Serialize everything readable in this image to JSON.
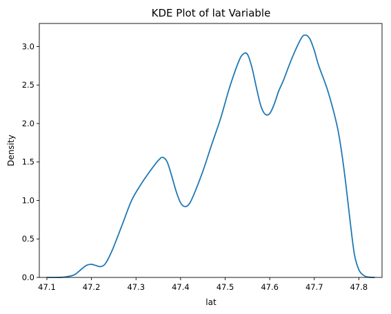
{
  "chart_data": {
    "type": "line",
    "title": "KDE Plot of lat Variable",
    "xlabel": "lat",
    "ylabel": "Density",
    "xlim": [
      47.083,
      47.852
    ],
    "ylim": [
      0,
      3.3
    ],
    "grid": false,
    "legend": "none",
    "line_color": "#1f77b4",
    "x_ticks": [
      47.1,
      47.2,
      47.3,
      47.4,
      47.5,
      47.6,
      47.7,
      47.8
    ],
    "x_tick_labels": [
      "47.1",
      "47.2",
      "47.3",
      "47.4",
      "47.5",
      "47.6",
      "47.7",
      "47.8"
    ],
    "y_ticks": [
      0,
      0.5,
      1.0,
      1.5,
      2.0,
      2.5,
      3.0
    ],
    "y_tick_labels": [
      "0.0",
      "0.5",
      "1.0",
      "1.5",
      "2.0",
      "2.5",
      "3.0"
    ],
    "series": [
      {
        "x": [
          47.1,
          47.12,
          47.14,
          47.16,
          47.17,
          47.18,
          47.19,
          47.2,
          47.21,
          47.22,
          47.23,
          47.24,
          47.25,
          47.27,
          47.29,
          47.31,
          47.33,
          47.35,
          47.36,
          47.37,
          47.38,
          47.39,
          47.4,
          47.41,
          47.42,
          47.43,
          47.45,
          47.47,
          47.49,
          47.51,
          47.53,
          47.54,
          47.55,
          47.56,
          47.57,
          47.58,
          47.59,
          47.6,
          47.61,
          47.62,
          47.63,
          47.65,
          47.67,
          47.68,
          47.69,
          47.7,
          47.71,
          47.73,
          47.75,
          47.76,
          47.77,
          47.78,
          47.79,
          47.8,
          47.81,
          47.82,
          47.835
        ],
        "values": [
          0.0,
          0.0,
          0.005,
          0.03,
          0.07,
          0.12,
          0.16,
          0.17,
          0.155,
          0.14,
          0.17,
          0.27,
          0.4,
          0.7,
          1.0,
          1.2,
          1.37,
          1.52,
          1.56,
          1.5,
          1.32,
          1.12,
          0.97,
          0.92,
          0.96,
          1.08,
          1.38,
          1.73,
          2.07,
          2.47,
          2.8,
          2.9,
          2.9,
          2.73,
          2.47,
          2.23,
          2.12,
          2.13,
          2.25,
          2.42,
          2.55,
          2.85,
          3.1,
          3.15,
          3.1,
          2.95,
          2.75,
          2.43,
          2.0,
          1.68,
          1.25,
          0.75,
          0.3,
          0.1,
          0.03,
          0.005,
          0.0
        ]
      }
    ]
  }
}
